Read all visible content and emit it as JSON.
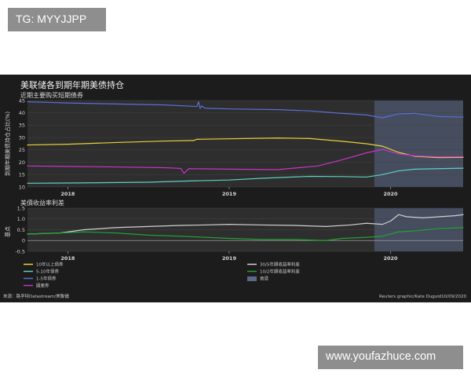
{
  "watermarks": {
    "top": "TG: MYYJJPP",
    "bottom": "www.youfazhuce.com"
  },
  "chart_data": [
    {
      "type": "line",
      "title": "美联储各到期年期美债持仓",
      "subtitle": "近期主要购买短期债券",
      "ylabel": "到期年期美债持仓占比(%)",
      "ylim": [
        10,
        45
      ],
      "yticks": [
        10,
        15,
        20,
        25,
        30,
        35,
        40,
        45
      ],
      "x_domain": [
        2017.75,
        2020.45
      ],
      "xticks": [
        {
          "value": 2018.0,
          "label": "2018"
        },
        {
          "value": 2019.0,
          "label": "2019"
        },
        {
          "value": 2020.0,
          "label": "2020"
        }
      ],
      "shaded_region": [
        2019.9,
        2020.45
      ],
      "series": [
        {
          "name": "1-5年債券",
          "color": "#5a6fd8",
          "x": [
            2017.75,
            2018.0,
            2018.3,
            2018.6,
            2018.8,
            2018.81,
            2018.82,
            2018.83,
            2018.85,
            2019.0,
            2019.3,
            2019.5,
            2019.7,
            2019.85,
            2019.95,
            2020.05,
            2020.15,
            2020.3,
            2020.45
          ],
          "y": [
            44.5,
            44,
            43.6,
            43.2,
            42.6,
            44.5,
            41.8,
            42.8,
            41.9,
            41.6,
            41.3,
            40.8,
            39.8,
            39.2,
            38.0,
            39.6,
            39.8,
            38.5,
            38.3
          ]
        },
        {
          "name": "10年以上債券",
          "color": "#e8d23a",
          "x": [
            2017.75,
            2018.0,
            2018.3,
            2018.6,
            2018.78,
            2018.8,
            2019.0,
            2019.3,
            2019.5,
            2019.7,
            2019.85,
            2019.95,
            2020.05,
            2020.15,
            2020.3,
            2020.45
          ],
          "y": [
            27,
            27.3,
            28,
            28.6,
            28.8,
            29.3,
            29.5,
            29.8,
            29.6,
            28.5,
            27.5,
            26.5,
            24.0,
            22.4,
            21.9,
            22.0
          ]
        },
        {
          "name": "國庫券",
          "color": "#c834c8",
          "x": [
            2017.75,
            2018.0,
            2018.3,
            2018.6,
            2018.7,
            2018.72,
            2018.75,
            2019.0,
            2019.3,
            2019.55,
            2019.7,
            2019.85,
            2019.95,
            2020.05,
            2020.15,
            2020.3,
            2020.45
          ],
          "y": [
            18.5,
            18.3,
            18.1,
            17.8,
            17.5,
            15.5,
            17.4,
            17.2,
            17.0,
            18.5,
            21.0,
            23.8,
            25.2,
            23.4,
            22.6,
            22.2,
            22.3
          ]
        },
        {
          "name": "5-10年債券",
          "color": "#5fd0c4",
          "x": [
            2017.75,
            2018.0,
            2018.5,
            2018.8,
            2019.0,
            2019.2,
            2019.5,
            2019.7,
            2019.85,
            2019.95,
            2020.05,
            2020.15,
            2020.3,
            2020.45
          ],
          "y": [
            11.5,
            11.6,
            11.9,
            12.5,
            12.8,
            13.5,
            14.3,
            14.2,
            14.0,
            15.0,
            16.5,
            17.2,
            17.4,
            17.6
          ]
        }
      ]
    },
    {
      "type": "line",
      "title": "美債收益率利差",
      "ylabel": "基点",
      "ylim": [
        -0.5,
        1.5
      ],
      "yticks": [
        -0.5,
        0,
        0.5,
        1,
        1.5
      ],
      "yticklabels": [
        "-0.5",
        "0",
        "0.5",
        "1.0",
        "1.5"
      ],
      "x_domain": [
        2017.75,
        2020.45
      ],
      "xticks": [
        {
          "value": 2018.0,
          "label": "2018"
        },
        {
          "value": 2019.0,
          "label": "2019"
        },
        {
          "value": 2020.0,
          "label": "2020"
        }
      ],
      "shaded_region": [
        2019.9,
        2020.45
      ],
      "series": [
        {
          "name": "30/5年期收益率利差",
          "color": "#d0d0d0",
          "x": [
            2017.75,
            2017.95,
            2018.1,
            2018.3,
            2018.5,
            2018.7,
            2018.85,
            2019.0,
            2019.2,
            2019.4,
            2019.6,
            2019.75,
            2019.85,
            2019.95,
            2020.0,
            2020.05,
            2020.1,
            2020.2,
            2020.3,
            2020.4,
            2020.45
          ],
          "y": [
            0.3,
            0.35,
            0.5,
            0.6,
            0.65,
            0.7,
            0.72,
            0.75,
            0.72,
            0.7,
            0.65,
            0.72,
            0.8,
            0.75,
            0.9,
            1.2,
            1.1,
            1.05,
            1.1,
            1.15,
            1.2
          ]
        },
        {
          "name": "10/2年期收益率利差",
          "color": "#22a035",
          "x": [
            2017.75,
            2017.95,
            2018.1,
            2018.3,
            2018.5,
            2018.7,
            2018.85,
            2019.0,
            2019.2,
            2019.4,
            2019.6,
            2019.7,
            2019.85,
            2019.95,
            2020.05,
            2020.15,
            2020.3,
            2020.45
          ],
          "y": [
            0.3,
            0.35,
            0.4,
            0.35,
            0.25,
            0.2,
            0.15,
            0.1,
            0.05,
            0.05,
            0.0,
            0.1,
            0.15,
            0.2,
            0.4,
            0.45,
            0.55,
            0.6
          ]
        }
      ]
    }
  ],
  "legend": {
    "items": [
      {
        "label": "10年以上債券",
        "color": "#e8d23a",
        "kind": "line"
      },
      {
        "label": "5-10年債券",
        "color": "#5fd0c4",
        "kind": "line"
      },
      {
        "label": "1-5年債券",
        "color": "#5a6fd8",
        "kind": "line"
      },
      {
        "label": "國庫券",
        "color": "#c834c8",
        "kind": "line"
      },
      {
        "label": "30/5年期收益率利差",
        "color": "#d0d0d0",
        "kind": "line"
      },
      {
        "label": "10/2年期收益率利差",
        "color": "#22a035",
        "kind": "line"
      },
      {
        "label": "衰退",
        "color": "#5a6888",
        "kind": "box"
      }
    ]
  },
  "footer": {
    "source": "來源：路孚特Datastream/美聯儲",
    "credit": "Reuters graphic/Kate Duguid10/09/2020"
  }
}
